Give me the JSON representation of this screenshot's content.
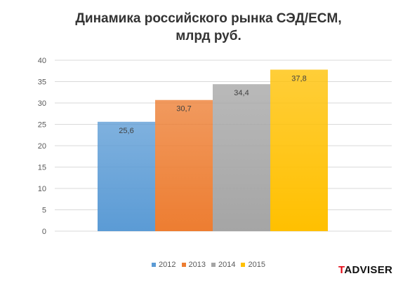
{
  "chart_data": {
    "type": "bar",
    "title_lines": [
      "Динамика российского рынка СЭД/ECM,",
      "млрд руб."
    ],
    "ylim": [
      0,
      40
    ],
    "yticks": [
      "0",
      "5",
      "10",
      "15",
      "20",
      "25",
      "30",
      "35",
      "40"
    ],
    "grid": true,
    "legend_position": "bottom",
    "series": [
      {
        "name": "2012",
        "value": 25.6,
        "label": "25,6",
        "color": "#5b9bd5"
      },
      {
        "name": "2013",
        "value": 30.7,
        "label": "30,7",
        "color": "#ed7d31"
      },
      {
        "name": "2014",
        "value": 34.4,
        "label": "34,4",
        "color": "#a5a5a5"
      },
      {
        "name": "2015",
        "value": 37.8,
        "label": "37,8",
        "color": "#ffc000"
      }
    ]
  },
  "logo": {
    "first_letter": "T",
    "rest": "ADVISER"
  }
}
